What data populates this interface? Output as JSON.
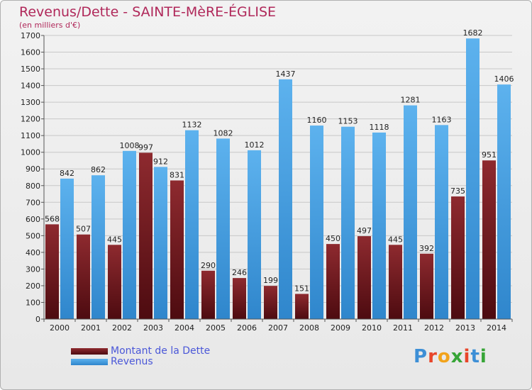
{
  "title": "Revenus/Dette - SAINTE-MèRE-ÉGLISE",
  "subtitle": "(en milliers d'€)",
  "logo": {
    "letters": [
      "P",
      "r",
      "o",
      "x",
      "i",
      "t",
      "i"
    ],
    "colors": [
      "#3d8fd6",
      "#e8462a",
      "#f2a31b",
      "#37a537",
      "#e8462a",
      "#3d8fd6",
      "#37a537"
    ]
  },
  "chart_data": {
    "type": "bar",
    "categories": [
      "2000",
      "2001",
      "2002",
      "2003",
      "2004",
      "2005",
      "2006",
      "2007",
      "2008",
      "2009",
      "2010",
      "2011",
      "2012",
      "2013",
      "2014"
    ],
    "series": [
      {
        "name": "Montant de la Dette",
        "color": "#7a1c22",
        "values": [
          568,
          507,
          445,
          997,
          831,
          290,
          246,
          199,
          151,
          450,
          497,
          445,
          392,
          735,
          951
        ],
        "labels": [
          "568",
          "507",
          "445",
          "997",
          "831",
          "290",
          "246",
          "199",
          "151",
          "450",
          "497",
          "445",
          "392",
          "735",
          "951"
        ]
      },
      {
        "name": "Revenus",
        "color": "#4aa3e6",
        "values": [
          842,
          862,
          1008,
          912,
          1132,
          1082,
          1012,
          1437,
          1160,
          1153,
          1118,
          1281,
          1163,
          1682,
          1406
        ],
        "labels": [
          "842",
          "862",
          "1008",
          "912",
          "1132",
          "1082",
          "1012",
          "1437",
          "1160",
          "1153",
          "1118",
          "1281",
          "1163",
          "1682",
          "1406"
        ]
      }
    ],
    "ylim": [
      0,
      1700
    ],
    "yticks": [
      "0",
      "100",
      "200",
      "300",
      "400",
      "500",
      "600",
      "700",
      "800",
      "900",
      "1000",
      "1100",
      "1200",
      "1300",
      "1400",
      "1500",
      "1600",
      "1700"
    ],
    "grid": true,
    "legend_position": "bottom-left"
  }
}
